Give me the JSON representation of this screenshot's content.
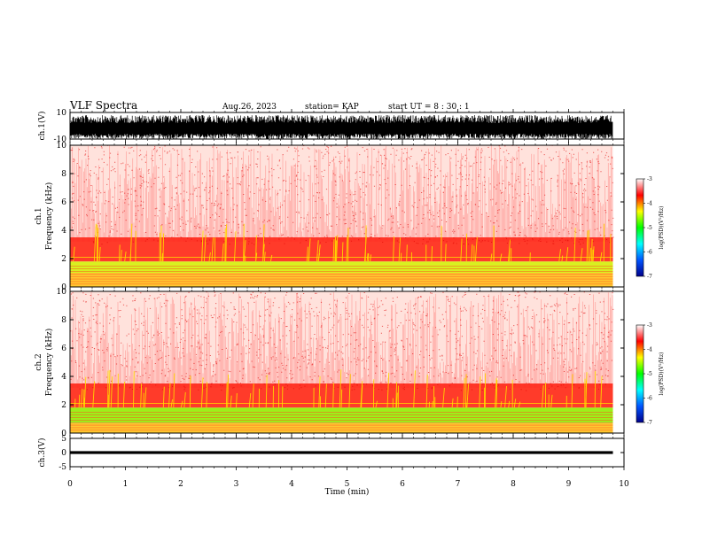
{
  "header": {
    "title": "VLF Spectra",
    "date": "Aug.26, 2023",
    "station": "station= KAP",
    "start": "start  UT =   8  : 30 : 1"
  },
  "chart_data": [
    {
      "type": "line",
      "panel": "ch1-waveform",
      "ylabel": "ch.1(V)",
      "ylim": [
        -10,
        10
      ],
      "yticks": [
        "10",
        "-10"
      ],
      "xlim": [
        0,
        10
      ],
      "data_end_min": 9.8,
      "description_of_signal": "dense oscillating waveform filling approximately -10 to +8 V",
      "y_range_visible": [
        -10,
        8
      ]
    },
    {
      "type": "heatmap",
      "panel": "ch1-spectrogram",
      "ylabel_line1": "ch.1",
      "ylabel_line2": "Frequency  (kHz)",
      "ylim": [
        0,
        10
      ],
      "yticks": [
        "0",
        "2",
        "4",
        "6",
        "8",
        "10"
      ],
      "xlim": [
        0,
        10
      ],
      "data_end_min": 9.8,
      "colorbar": {
        "label": "log(PSD)(V²/Hz)",
        "range": [
          -7,
          -3
        ],
        "ticks": [
          "-3",
          "-4",
          "-5",
          "-6",
          "-7"
        ],
        "colors": [
          "#00008b",
          "#0055ff",
          "#00ffff",
          "#00ff00",
          "#ffff00",
          "#ff0000",
          "#ffffff"
        ]
      },
      "bands": [
        {
          "freq_khz": [
            0.0,
            1.0
          ],
          "level": "high, yellow/orange with horizontal lines"
        },
        {
          "freq_khz": [
            1.0,
            1.8
          ],
          "level": "yellow-green"
        },
        {
          "freq_khz": [
            1.8,
            3.5
          ],
          "level": "red-orange"
        },
        {
          "freq_khz": [
            3.5,
            10.0
          ],
          "level": "speckled red on white"
        }
      ]
    },
    {
      "type": "heatmap",
      "panel": "ch2-spectrogram",
      "ylabel_line1": "ch.2",
      "ylabel_line2": "Frequency  (kHz)",
      "ylim": [
        0,
        10
      ],
      "yticks": [
        "0",
        "2",
        "4",
        "6",
        "8",
        "10"
      ],
      "xlim": [
        0,
        10
      ],
      "data_end_min": 9.8,
      "colorbar": {
        "label": "log(PSD)(V²/Hz)",
        "range": [
          -7,
          -3
        ],
        "ticks": [
          "-3",
          "-4",
          "-5",
          "-6",
          "-7"
        ],
        "colors": [
          "#00008b",
          "#0055ff",
          "#00ffff",
          "#00ff00",
          "#ffff00",
          "#ff0000",
          "#ffffff"
        ]
      },
      "bands": [
        {
          "freq_khz": [
            0.0,
            0.7
          ],
          "level": "yellow-orange with horizontal lines"
        },
        {
          "freq_khz": [
            0.7,
            1.8
          ],
          "level": "green-yellow"
        },
        {
          "freq_khz": [
            1.8,
            3.5
          ],
          "level": "red-orange"
        },
        {
          "freq_khz": [
            3.5,
            10.0
          ],
          "level": "speckled red on white"
        }
      ]
    },
    {
      "type": "line",
      "panel": "ch3-waveform",
      "ylabel": "ch.3(V)",
      "ylim": [
        -5,
        5
      ],
      "yticks": [
        "5",
        "0",
        "-5"
      ],
      "xlim": [
        0,
        10
      ],
      "data_end_min": 9.8,
      "signal_center_v": 0,
      "signal_amplitude_v": 0.5
    }
  ],
  "x_axis": {
    "label": "Time  (min)",
    "ticks": [
      "0",
      "1",
      "2",
      "3",
      "4",
      "5",
      "6",
      "7",
      "8",
      "9",
      "10"
    ]
  }
}
